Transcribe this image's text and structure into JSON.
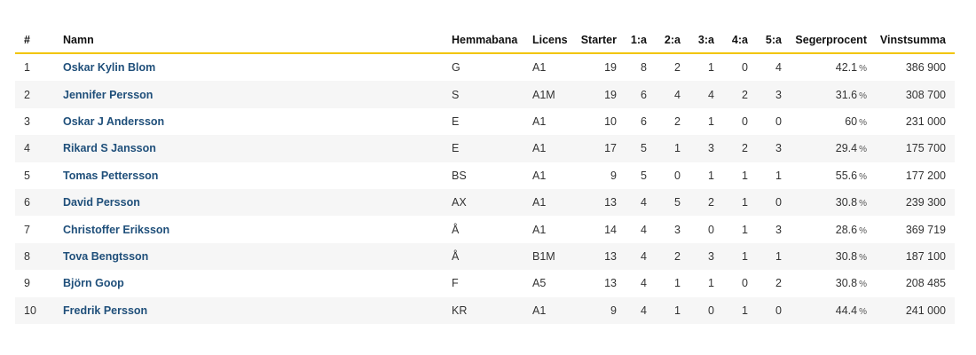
{
  "columns": {
    "pos": "#",
    "name": "Namn",
    "home": "Hemmabana",
    "license": "Licens",
    "starts": "Starter",
    "first": "1:a",
    "second": "2:a",
    "third": "3:a",
    "fourth": "4:a",
    "fifth": "5:a",
    "win_pct": "Segerprocent",
    "earnings": "Vinstsumma"
  },
  "pct_unit": "%",
  "colors": {
    "header_rule": "#f2c500",
    "name_link": "#1f4f7a",
    "stripe": "#f6f6f6"
  },
  "rows": [
    {
      "pos": "1",
      "name": "Oskar Kylin Blom",
      "home": "G",
      "license": "A1",
      "starts": "19",
      "first": "8",
      "second": "2",
      "third": "1",
      "fourth": "0",
      "fifth": "4",
      "win_pct": "42.1",
      "earnings": "386 900"
    },
    {
      "pos": "2",
      "name": "Jennifer Persson",
      "home": "S",
      "license": "A1M",
      "starts": "19",
      "first": "6",
      "second": "4",
      "third": "4",
      "fourth": "2",
      "fifth": "3",
      "win_pct": "31.6",
      "earnings": "308 700"
    },
    {
      "pos": "3",
      "name": "Oskar J Andersson",
      "home": "E",
      "license": "A1",
      "starts": "10",
      "first": "6",
      "second": "2",
      "third": "1",
      "fourth": "0",
      "fifth": "0",
      "win_pct": "60",
      "earnings": "231 000"
    },
    {
      "pos": "4",
      "name": "Rikard S Jansson",
      "home": "E",
      "license": "A1",
      "starts": "17",
      "first": "5",
      "second": "1",
      "third": "3",
      "fourth": "2",
      "fifth": "3",
      "win_pct": "29.4",
      "earnings": "175 700"
    },
    {
      "pos": "5",
      "name": "Tomas Pettersson",
      "home": "BS",
      "license": "A1",
      "starts": "9",
      "first": "5",
      "second": "0",
      "third": "1",
      "fourth": "1",
      "fifth": "1",
      "win_pct": "55.6",
      "earnings": "177 200"
    },
    {
      "pos": "6",
      "name": "David Persson",
      "home": "AX",
      "license": "A1",
      "starts": "13",
      "first": "4",
      "second": "5",
      "third": "2",
      "fourth": "1",
      "fifth": "0",
      "win_pct": "30.8",
      "earnings": "239 300"
    },
    {
      "pos": "7",
      "name": "Christoffer Eriksson",
      "home": "Å",
      "license": "A1",
      "starts": "14",
      "first": "4",
      "second": "3",
      "third": "0",
      "fourth": "1",
      "fifth": "3",
      "win_pct": "28.6",
      "earnings": "369 719"
    },
    {
      "pos": "8",
      "name": "Tova Bengtsson",
      "home": "Å",
      "license": "B1M",
      "starts": "13",
      "first": "4",
      "second": "2",
      "third": "3",
      "fourth": "1",
      "fifth": "1",
      "win_pct": "30.8",
      "earnings": "187 100"
    },
    {
      "pos": "9",
      "name": "Björn Goop",
      "home": "F",
      "license": "A5",
      "starts": "13",
      "first": "4",
      "second": "1",
      "third": "1",
      "fourth": "0",
      "fifth": "2",
      "win_pct": "30.8",
      "earnings": "208 485"
    },
    {
      "pos": "10",
      "name": "Fredrik Persson",
      "home": "KR",
      "license": "A1",
      "starts": "9",
      "first": "4",
      "second": "1",
      "third": "0",
      "fourth": "1",
      "fifth": "0",
      "win_pct": "44.4",
      "earnings": "241 000"
    }
  ]
}
